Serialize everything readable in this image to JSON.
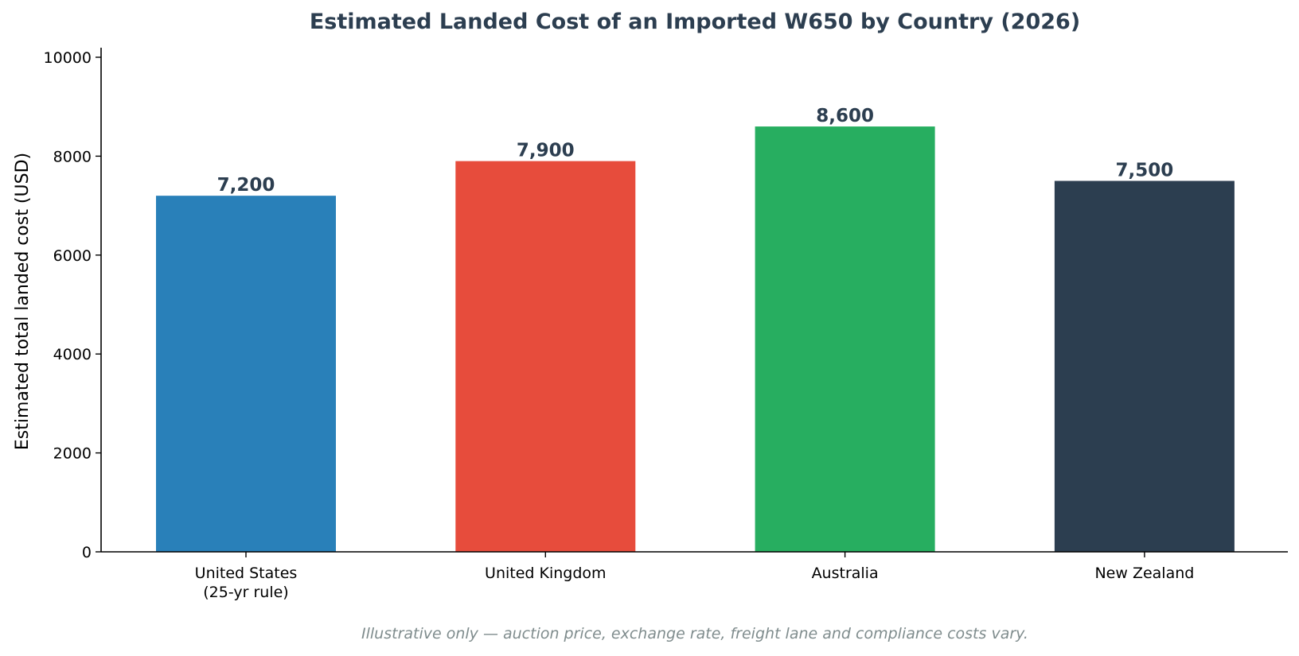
{
  "chart_data": {
    "type": "bar",
    "title": "Estimated Landed Cost of an Imported W650 by Country (2026)",
    "xlabel": "",
    "ylabel": "Estimated total landed cost (USD)",
    "categories": [
      [
        "United States",
        "(25-yr rule)"
      ],
      [
        "United Kingdom"
      ],
      [
        "Australia"
      ],
      [
        "New Zealand"
      ]
    ],
    "values": [
      7200,
      7900,
      8600,
      7500
    ],
    "value_labels": [
      "7,200",
      "7,900",
      "8,600",
      "7,500"
    ],
    "colors": [
      "#2980b9",
      "#e74c3c",
      "#27ae60",
      "#2c3e50"
    ],
    "ylim": [
      0,
      10000
    ],
    "yticks": [
      0,
      2000,
      4000,
      6000,
      8000,
      10000
    ],
    "ytick_labels": [
      "0",
      "2000",
      "4000",
      "6000",
      "8000",
      "10000"
    ],
    "grid": false,
    "footnote": "Illustrative only — auction price, exchange rate, freight lane and compliance costs vary.",
    "text_color": "#2c3e50",
    "footnote_color": "#7f8c8d"
  }
}
